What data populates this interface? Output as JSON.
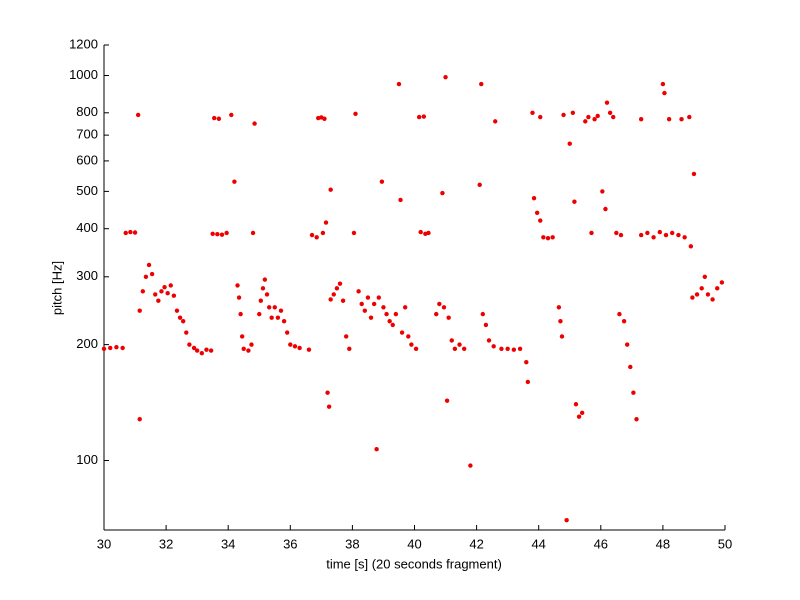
{
  "chart_data": {
    "type": "scatter",
    "xlabel": "time [s] (20 seconds fragment)",
    "ylabel": "pitch [Hz]",
    "xlim": [
      30,
      50
    ],
    "xticks": [
      30,
      32,
      34,
      36,
      38,
      40,
      42,
      44,
      46,
      48,
      50
    ],
    "ylim": [
      66,
      1200
    ],
    "yticks": [
      100,
      200,
      300,
      400,
      500,
      600,
      700,
      800,
      1000,
      1200
    ],
    "yscale": "log",
    "grid": false,
    "series": [
      {
        "color": "#ee0000",
        "x": [
          30.0,
          30.2,
          30.4,
          30.6,
          30.7,
          30.85,
          31.0,
          31.1,
          31.15,
          31.15,
          31.25,
          31.35,
          31.45,
          31.55,
          31.65,
          31.75,
          31.85,
          31.95,
          32.05,
          32.15,
          32.25,
          32.35,
          32.45,
          32.55,
          32.65,
          32.75,
          32.9,
          33.0,
          33.15,
          33.3,
          33.45,
          33.5,
          33.65,
          33.8,
          33.95,
          33.55,
          33.7,
          34.1,
          34.2,
          34.3,
          34.35,
          34.4,
          34.45,
          34.5,
          34.65,
          34.75,
          34.8,
          34.85,
          35.0,
          35.05,
          35.12,
          35.18,
          35.25,
          35.32,
          35.4,
          35.5,
          35.6,
          35.7,
          35.8,
          35.9,
          36.0,
          36.15,
          36.3,
          36.6,
          36.7,
          36.85,
          36.9,
          37.0,
          37.1,
          37.05,
          37.15,
          37.2,
          37.25,
          37.3,
          37.3,
          37.4,
          37.5,
          37.6,
          37.7,
          37.8,
          37.9,
          38.05,
          38.1,
          38.2,
          38.3,
          38.4,
          38.5,
          38.6,
          38.7,
          38.78,
          38.85,
          38.95,
          39.0,
          39.1,
          39.2,
          39.3,
          39.4,
          39.5,
          39.55,
          39.6,
          39.7,
          39.8,
          39.9,
          40.05,
          40.15,
          40.3,
          40.2,
          40.35,
          40.45,
          40.7,
          40.8,
          40.9,
          40.95,
          41.0,
          41.05,
          41.1,
          41.2,
          41.3,
          41.45,
          41.6,
          41.8,
          42.1,
          42.15,
          42.2,
          42.3,
          42.4,
          42.6,
          42.55,
          42.8,
          43.0,
          43.2,
          43.4,
          43.6,
          43.65,
          43.8,
          43.85,
          43.95,
          44.05,
          44.05,
          44.15,
          44.3,
          44.45,
          44.65,
          44.7,
          44.75,
          44.8,
          44.9,
          45.0,
          45.1,
          45.15,
          45.2,
          45.3,
          45.4,
          45.5,
          45.6,
          45.7,
          45.8,
          45.9,
          46.05,
          46.15,
          46.2,
          46.3,
          46.4,
          46.5,
          46.65,
          46.6,
          46.75,
          46.85,
          46.95,
          47.05,
          47.15,
          47.3,
          47.3,
          47.5,
          47.7,
          47.9,
          48.0,
          48.05,
          48.1,
          48.2,
          48.3,
          48.5,
          48.6,
          48.7,
          48.85,
          48.9,
          49.0,
          48.95,
          49.1,
          49.25,
          49.35,
          49.45,
          49.6,
          49.75,
          49.9
        ],
        "values": [
          195,
          196,
          197,
          196,
          390,
          392,
          391,
          790,
          128,
          245,
          275,
          300,
          322,
          305,
          270,
          260,
          275,
          282,
          272,
          285,
          268,
          245,
          235,
          230,
          215,
          200,
          196,
          193,
          190,
          194,
          193,
          388,
          387,
          386,
          390,
          775,
          772,
          790,
          530,
          285,
          265,
          240,
          210,
          195,
          193,
          200,
          390,
          750,
          240,
          260,
          280,
          295,
          270,
          250,
          235,
          250,
          235,
          245,
          230,
          215,
          200,
          198,
          196,
          194,
          385,
          380,
          775,
          778,
          772,
          390,
          415,
          150,
          138,
          505,
          262,
          270,
          280,
          288,
          260,
          210,
          195,
          390,
          795,
          275,
          255,
          245,
          265,
          235,
          255,
          107,
          265,
          530,
          250,
          240,
          230,
          225,
          240,
          950,
          475,
          215,
          250,
          210,
          200,
          195,
          780,
          782,
          392,
          388,
          390,
          240,
          255,
          495,
          250,
          990,
          143,
          235,
          205,
          195,
          200,
          195,
          97,
          520,
          950,
          240,
          225,
          205,
          760,
          198,
          195,
          195,
          194,
          195,
          180,
          160,
          800,
          480,
          440,
          420,
          780,
          380,
          378,
          380,
          250,
          230,
          210,
          790,
          70,
          665,
          800,
          470,
          140,
          130,
          133,
          760,
          780,
          390,
          770,
          785,
          500,
          450,
          850,
          800,
          780,
          390,
          385,
          240,
          230,
          200,
          175,
          150,
          128,
          770,
          385,
          390,
          380,
          392,
          950,
          900,
          385,
          770,
          390,
          385,
          770,
          380,
          780,
          360,
          555,
          265,
          270,
          280,
          300,
          270,
          262,
          280,
          290
        ]
      }
    ]
  }
}
